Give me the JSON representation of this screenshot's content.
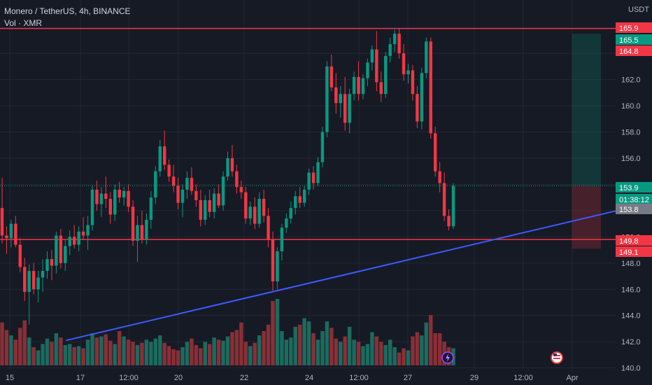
{
  "legend": {
    "title": "Monero / TetherUS, 4h, BINANCE",
    "indicator": "Vol · XMR"
  },
  "chart_data": {
    "type": "candlestick",
    "currency": "USDT",
    "ylim": [
      139.5,
      167.0
    ],
    "y_ticks": [
      "140.0",
      "142.0",
      "144.0",
      "146.0",
      "148.0",
      "150.0",
      "152.0",
      "154.0",
      "156.0",
      "158.0",
      "160.0",
      "162.0",
      "164.0"
    ],
    "x_ticks": [
      "15",
      "17",
      "12:00",
      "20",
      "22",
      "24",
      "12:00",
      "27",
      "29",
      "12:00",
      "Apr"
    ],
    "horizontal_lines": [
      165.9,
      149.8
    ],
    "trendline": {
      "start": [
        14,
        142.1
      ],
      "end": [
        126,
        151.0
      ]
    },
    "position": {
      "type": "long",
      "entry": 153.9,
      "target": 165.5,
      "stop": 149.1,
      "start_bar": 126,
      "end_bar": 170
    },
    "price_labels": [
      {
        "text": "165.9",
        "color": "#f23645"
      },
      {
        "text": "165.5",
        "color": "#089981"
      },
      {
        "text": "164.8",
        "color": "#f23645"
      },
      {
        "text": "153.9",
        "color": "#089981"
      },
      {
        "text": "01:38:12",
        "color": "#089981"
      },
      {
        "text": "153.8",
        "color": "#787b86"
      },
      {
        "text": "149.8",
        "color": "#f23645"
      },
      {
        "text": "149.1",
        "color": "#f23645"
      }
    ],
    "ohlc": [
      [
        152.2,
        154.5,
        149.5,
        150.1
      ],
      [
        150.1,
        150.8,
        148.7,
        149.9
      ],
      [
        149.9,
        151.3,
        149.2,
        151.0
      ],
      [
        151.0,
        151.6,
        149.2,
        149.4
      ],
      [
        149.4,
        149.9,
        147.3,
        147.7
      ],
      [
        147.7,
        148.4,
        145.1,
        145.8
      ],
      [
        145.8,
        147.9,
        143.3,
        147.4
      ],
      [
        147.4,
        148.0,
        145.6,
        146.0
      ],
      [
        146.0,
        147.4,
        145.0,
        146.9
      ],
      [
        146.9,
        148.3,
        145.8,
        147.4
      ],
      [
        147.4,
        148.9,
        146.8,
        148.3
      ],
      [
        148.3,
        149.0,
        146.7,
        147.8
      ],
      [
        147.8,
        150.4,
        147.2,
        150.1
      ],
      [
        150.1,
        150.6,
        147.6,
        148.0
      ],
      [
        148.0,
        149.8,
        147.4,
        149.3
      ],
      [
        149.3,
        150.5,
        148.6,
        150.0
      ],
      [
        150.0,
        150.9,
        149.1,
        149.4
      ],
      [
        149.4,
        150.8,
        148.9,
        150.4
      ],
      [
        150.4,
        151.5,
        149.8,
        150.1
      ],
      [
        150.1,
        151.6,
        149.0,
        150.9
      ],
      [
        150.9,
        153.9,
        150.5,
        153.6
      ],
      [
        153.6,
        154.3,
        152.0,
        152.5
      ],
      [
        152.5,
        153.8,
        151.5,
        153.3
      ],
      [
        153.3,
        154.6,
        152.2,
        152.9
      ],
      [
        152.9,
        153.4,
        151.0,
        151.7
      ],
      [
        151.7,
        154.0,
        151.2,
        153.6
      ],
      [
        153.6,
        154.2,
        152.6,
        153.0
      ],
      [
        153.0,
        153.8,
        152.4,
        153.5
      ],
      [
        153.5,
        154.0,
        151.9,
        152.3
      ],
      [
        152.3,
        152.8,
        149.3,
        149.7
      ],
      [
        149.7,
        151.6,
        148.1,
        150.9
      ],
      [
        150.9,
        152.0,
        149.5,
        149.8
      ],
      [
        149.8,
        151.8,
        149.4,
        151.3
      ],
      [
        151.3,
        153.5,
        150.6,
        153.0
      ],
      [
        153.0,
        155.4,
        152.5,
        155.0
      ],
      [
        155.0,
        157.4,
        154.6,
        156.9
      ],
      [
        156.9,
        158.1,
        155.1,
        155.5
      ],
      [
        155.5,
        155.9,
        154.2,
        154.6
      ],
      [
        154.6,
        155.5,
        153.4,
        153.9
      ],
      [
        153.9,
        154.5,
        152.1,
        152.6
      ],
      [
        152.6,
        154.0,
        151.5,
        153.6
      ],
      [
        153.6,
        155.0,
        152.9,
        154.5
      ],
      [
        154.5,
        155.3,
        153.2,
        153.5
      ],
      [
        153.5,
        154.0,
        152.3,
        152.8
      ],
      [
        152.8,
        153.6,
        150.8,
        151.3
      ],
      [
        151.3,
        153.2,
        150.9,
        152.8
      ],
      [
        152.8,
        153.6,
        151.5,
        151.9
      ],
      [
        151.9,
        153.7,
        151.4,
        153.3
      ],
      [
        153.3,
        154.0,
        152.2,
        152.4
      ],
      [
        152.4,
        155.0,
        152.0,
        154.6
      ],
      [
        154.6,
        156.5,
        154.3,
        156.0
      ],
      [
        156.0,
        157.0,
        154.6,
        155.0
      ],
      [
        155.0,
        155.5,
        153.3,
        153.8
      ],
      [
        153.8,
        154.3,
        152.9,
        153.4
      ],
      [
        153.4,
        153.8,
        151.0,
        151.4
      ],
      [
        151.4,
        152.7,
        150.9,
        152.3
      ],
      [
        152.3,
        153.0,
        150.6,
        151.0
      ],
      [
        151.0,
        153.4,
        150.7,
        152.9
      ],
      [
        152.9,
        153.6,
        151.1,
        151.6
      ],
      [
        151.6,
        152.2,
        149.2,
        149.8
      ],
      [
        149.8,
        150.4,
        145.9,
        146.6
      ],
      [
        146.6,
        149.2,
        146.0,
        148.9
      ],
      [
        148.9,
        151.0,
        148.2,
        150.7
      ],
      [
        150.7,
        151.8,
        150.3,
        151.4
      ],
      [
        151.4,
        152.7,
        151.0,
        152.2
      ],
      [
        152.2,
        153.5,
        151.7,
        153.1
      ],
      [
        153.1,
        153.8,
        152.2,
        152.6
      ],
      [
        152.6,
        153.9,
        152.3,
        153.6
      ],
      [
        153.6,
        155.2,
        153.2,
        154.9
      ],
      [
        154.9,
        155.4,
        153.6,
        154.1
      ],
      [
        154.1,
        156.1,
        153.9,
        155.7
      ],
      [
        155.7,
        158.4,
        155.3,
        158.0
      ],
      [
        158.0,
        163.4,
        157.6,
        163.0
      ],
      [
        163.0,
        163.9,
        161.1,
        161.4
      ],
      [
        161.4,
        162.5,
        159.4,
        160.2
      ],
      [
        160.2,
        161.5,
        159.1,
        160.9
      ],
      [
        160.9,
        162.2,
        158.1,
        158.7
      ],
      [
        158.7,
        161.3,
        157.9,
        160.9
      ],
      [
        160.9,
        162.6,
        160.4,
        162.2
      ],
      [
        162.2,
        163.4,
        160.4,
        160.9
      ],
      [
        160.9,
        162.4,
        160.5,
        162.1
      ],
      [
        162.1,
        163.6,
        161.5,
        163.3
      ],
      [
        163.3,
        164.6,
        162.7,
        164.3
      ],
      [
        164.3,
        165.7,
        161.1,
        161.8
      ],
      [
        161.8,
        162.6,
        160.3,
        160.9
      ],
      [
        160.9,
        164.1,
        160.6,
        163.8
      ],
      [
        163.8,
        165.2,
        163.3,
        164.7
      ],
      [
        164.7,
        165.8,
        164.1,
        165.5
      ],
      [
        165.5,
        165.9,
        163.6,
        164.0
      ],
      [
        164.0,
        164.7,
        161.9,
        162.4
      ],
      [
        162.4,
        163.2,
        161.7,
        162.7
      ],
      [
        162.7,
        163.1,
        160.4,
        160.9
      ],
      [
        160.9,
        161.5,
        158.3,
        158.8
      ],
      [
        158.8,
        162.9,
        158.2,
        162.5
      ],
      [
        162.5,
        165.2,
        162.1,
        164.9
      ],
      [
        164.9,
        165.2,
        157.5,
        157.9
      ],
      [
        157.9,
        158.4,
        154.6,
        155.0
      ],
      [
        155.0,
        155.7,
        153.4,
        154.1
      ],
      [
        154.1,
        154.9,
        151.2,
        151.6
      ],
      [
        151.6,
        152.1,
        150.5,
        150.8
      ],
      [
        150.8,
        154.1,
        150.6,
        153.9
      ]
    ],
    "volume": [
      40,
      33,
      28,
      24,
      35,
      42,
      26,
      17,
      14,
      20,
      25,
      22,
      30,
      26,
      19,
      20,
      17,
      18,
      16,
      24,
      30,
      26,
      27,
      29,
      23,
      20,
      32,
      27,
      24,
      22,
      19,
      21,
      24,
      22,
      25,
      28,
      21,
      18,
      15,
      14,
      17,
      22,
      25,
      19,
      16,
      22,
      20,
      26,
      24,
      23,
      27,
      31,
      33,
      40,
      22,
      18,
      21,
      28,
      32,
      38,
      60,
      62,
      32,
      24,
      26,
      36,
      38,
      44,
      41,
      30,
      24,
      32,
      41,
      35,
      25,
      22,
      27,
      36,
      24,
      22,
      18,
      20,
      31,
      27,
      22,
      19,
      24,
      17,
      12,
      16,
      14,
      27,
      31,
      28,
      40,
      47,
      30,
      30,
      22,
      17,
      16
    ]
  }
}
